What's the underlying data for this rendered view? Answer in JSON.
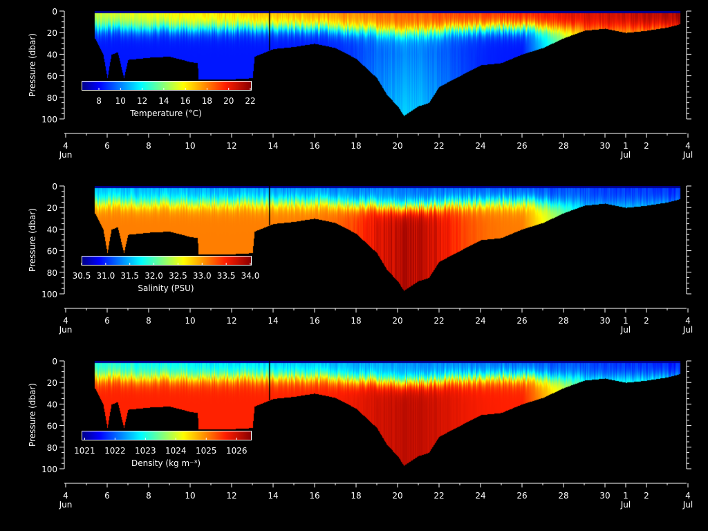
{
  "chart_data": {
    "type": "heatmap",
    "x_axis": {
      "label_unit": "day",
      "range_days_since_jun4": [
        0,
        30
      ],
      "ticks": [
        {
          "day": 0,
          "label": "4",
          "sub": "Jun"
        },
        {
          "day": 2,
          "label": "6"
        },
        {
          "day": 4,
          "label": "8"
        },
        {
          "day": 6,
          "label": "10"
        },
        {
          "day": 8,
          "label": "12"
        },
        {
          "day": 10,
          "label": "14"
        },
        {
          "day": 12,
          "label": "16"
        },
        {
          "day": 14,
          "label": "18"
        },
        {
          "day": 16,
          "label": "20"
        },
        {
          "day": 18,
          "label": "22"
        },
        {
          "day": 20,
          "label": "24"
        },
        {
          "day": 22,
          "label": "26"
        },
        {
          "day": 24,
          "label": "28"
        },
        {
          "day": 26,
          "label": "30"
        },
        {
          "day": 27,
          "label": "1",
          "sub": "Jul"
        },
        {
          "day": 28,
          "label": "2"
        },
        {
          "day": 30,
          "label": "4",
          "sub": "Jul"
        }
      ]
    },
    "y_axis": {
      "label": "Pressure (dbar)",
      "range": [
        0,
        100
      ],
      "ticks": [
        "0",
        "20",
        "40",
        "60",
        "80",
        "100"
      ]
    },
    "data_start_day": 1.4,
    "data_end_day": 29.6,
    "bottom_depth_dbar": [
      [
        1.4,
        25
      ],
      [
        1.8,
        40
      ],
      [
        2.0,
        62
      ],
      [
        2.2,
        40
      ],
      [
        2.5,
        38
      ],
      [
        2.8,
        62
      ],
      [
        3.0,
        45
      ],
      [
        4,
        43
      ],
      [
        5,
        42
      ],
      [
        6,
        47
      ],
      [
        6.35,
        48
      ],
      [
        6.4,
        63
      ],
      [
        8,
        63
      ],
      [
        9,
        62
      ],
      [
        9.1,
        42
      ],
      [
        10,
        35
      ],
      [
        11,
        33
      ],
      [
        12,
        30
      ],
      [
        13,
        34
      ],
      [
        14,
        44
      ],
      [
        15,
        62
      ],
      [
        15.5,
        78
      ],
      [
        16,
        88
      ],
      [
        16.3,
        97
      ],
      [
        17,
        88
      ],
      [
        17.5,
        85
      ],
      [
        18,
        70
      ],
      [
        19,
        60
      ],
      [
        20,
        50
      ],
      [
        21,
        48
      ],
      [
        22,
        40
      ],
      [
        23,
        34
      ],
      [
        24,
        25
      ],
      [
        25,
        18
      ],
      [
        26,
        16
      ],
      [
        27,
        20
      ],
      [
        28,
        18
      ],
      [
        29,
        15
      ],
      [
        29.6,
        12
      ]
    ],
    "panels": [
      {
        "name": "temperature",
        "cbar_label": "Temperature (°C)",
        "range": [
          6.4,
          22
        ],
        "cbar_ticks": [
          "8",
          "10",
          "12",
          "14",
          "16",
          "18",
          "20",
          "22"
        ],
        "tick_values": [
          8,
          10,
          12,
          14,
          16,
          18,
          20,
          22
        ],
        "surface_start": 15,
        "surface_end": 21.5,
        "deep": 8.3,
        "deep_max_day20": 10.5,
        "late_deep": 17
      },
      {
        "name": "salinity",
        "cbar_label": "Salinity (PSU)",
        "range": [
          30.5,
          34.0
        ],
        "cbar_ticks": [
          "30.5",
          "31.0",
          "31.5",
          "32.0",
          "32.5",
          "33.0",
          "33.5",
          "34.0"
        ],
        "tick_values": [
          30.5,
          31.0,
          31.5,
          32.0,
          32.5,
          33.0,
          33.5,
          34.0
        ],
        "surface_start": 31.5,
        "surface_end": 31.0,
        "deep": 33.1,
        "deep_max_day20": 34.0,
        "late_deep": 31.6
      },
      {
        "name": "density",
        "cbar_label": "Density (kg m⁻³)",
        "range": [
          1020.9,
          1026.45
        ],
        "cbar_ticks": [
          "1021",
          "1022",
          "1023",
          "1024",
          "1025",
          "1026"
        ],
        "tick_values": [
          1021,
          1022,
          1023,
          1024,
          1025,
          1026
        ],
        "surface_start": 1023.0,
        "surface_end": 1021.6,
        "deep": 1025.6,
        "deep_max_day20": 1026.2,
        "late_deep": 1023.2
      }
    ]
  }
}
